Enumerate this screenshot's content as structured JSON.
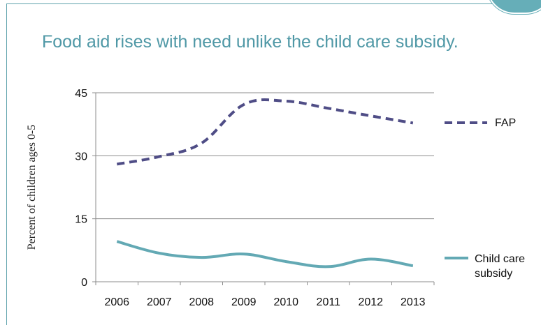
{
  "title": "Food aid rises with need unlike the child care subsidy.",
  "chart_data": {
    "type": "line",
    "ylabel": "Percent of children ages 0-5",
    "xlabel": "",
    "categories": [
      "2006",
      "2007",
      "2008",
      "2009",
      "2010",
      "2011",
      "2012",
      "2013"
    ],
    "y_ticks": [
      0,
      15,
      30,
      45
    ],
    "ylim": [
      0,
      45
    ],
    "grid": true,
    "legend_position": "right",
    "series": [
      {
        "name": "FAP",
        "style": "dashed",
        "color": "#4f4d86",
        "values": [
          28.0,
          29.8,
          33.0,
          42.2,
          43.0,
          41.3,
          39.5,
          37.8
        ]
      },
      {
        "name": "Child care subsidy",
        "legend_lines": [
          "Child care",
          "subsidy"
        ],
        "style": "solid",
        "color": "#63a9b4",
        "values": [
          9.6,
          6.8,
          5.8,
          6.6,
          4.8,
          3.6,
          5.4,
          3.8
        ]
      }
    ]
  }
}
